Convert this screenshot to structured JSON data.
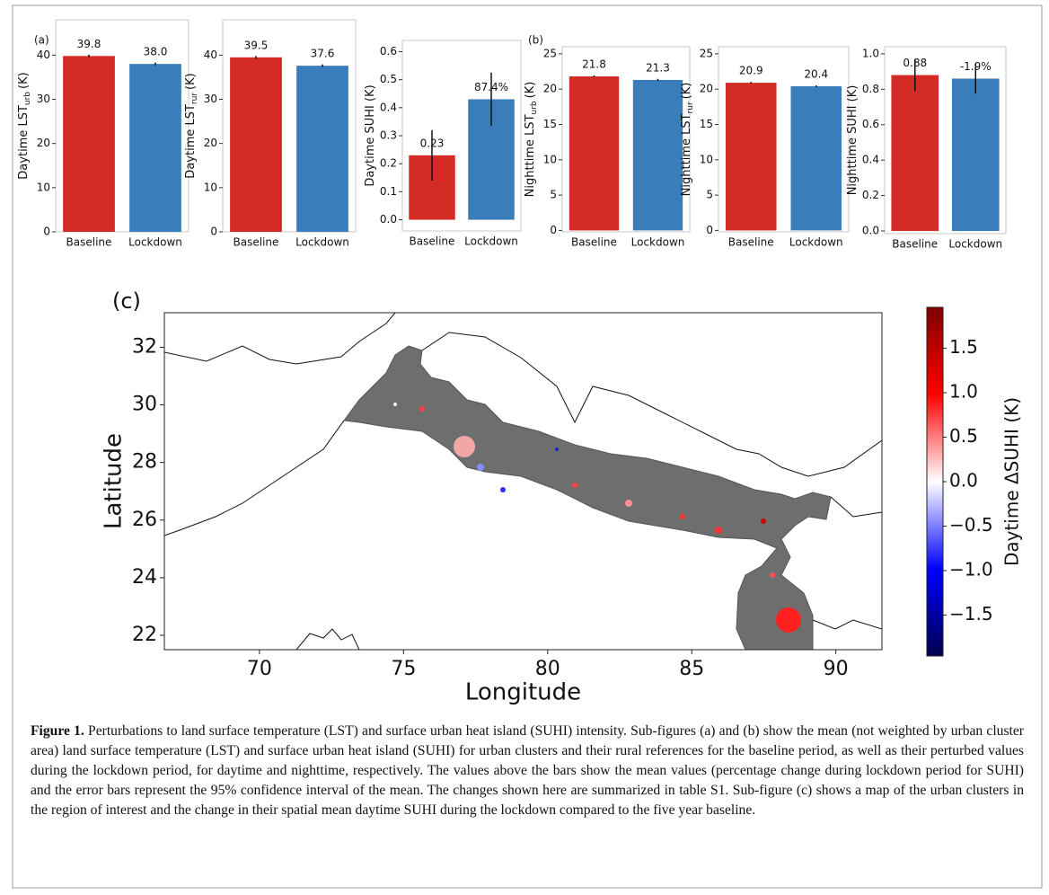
{
  "chart_data": [
    {
      "type": "bar",
      "panel_label": "(a)",
      "ylabel": "Daytime LST",
      "ylabel_sub": "urb",
      "ylabel_unit": "(K)",
      "categories": [
        "Baseline",
        "Lockdown"
      ],
      "values": [
        39.8,
        38.0
      ],
      "value_labels": [
        "39.8",
        "38.0"
      ],
      "errors": [
        0.3,
        0.3
      ],
      "colors": [
        "#d42b27",
        "#3a7dbb"
      ],
      "ylim": [
        0,
        48
      ],
      "yticks": [
        0,
        10,
        20,
        30,
        40
      ]
    },
    {
      "type": "bar",
      "ylabel": "Daytime LST",
      "ylabel_sub": "rur",
      "ylabel_unit": "(K)",
      "categories": [
        "Baseline",
        "Lockdown"
      ],
      "values": [
        39.5,
        37.6
      ],
      "value_labels": [
        "39.5",
        "37.6"
      ],
      "errors": [
        0.3,
        0.3
      ],
      "colors": [
        "#d42b27",
        "#3a7dbb"
      ],
      "ylim": [
        0,
        48
      ],
      "yticks": [
        0,
        10,
        20,
        30,
        40
      ]
    },
    {
      "type": "bar",
      "ylabel": "Daytime SUHI (K)",
      "categories": [
        "Baseline",
        "Lockdown"
      ],
      "values": [
        0.23,
        0.43
      ],
      "value_labels": [
        "0.23",
        null
      ],
      "change_labels": [
        null,
        "87.4%"
      ],
      "errors": [
        0.09,
        0.095
      ],
      "colors": [
        "#d42b27",
        "#3a7dbb"
      ],
      "ylim": [
        -0.04,
        0.64
      ],
      "yticks": [
        {
          "value": 0,
          "label": "0.0"
        },
        0.1,
        0.2,
        0.3,
        0.4,
        0.5,
        0.6
      ]
    },
    {
      "type": "bar",
      "panel_label": "(b)",
      "ylabel": "Nighttime LST",
      "ylabel_sub": "urb",
      "ylabel_unit": "(K)",
      "categories": [
        "Baseline",
        "Lockdown"
      ],
      "values": [
        21.8,
        21.3
      ],
      "value_labels": [
        "21.8",
        "21.3"
      ],
      "errors": [
        0.15,
        0.15
      ],
      "colors": [
        "#d42b27",
        "#3a7dbb"
      ],
      "ylim": [
        -0.2,
        26
      ],
      "yticks": [
        0,
        5,
        10,
        15,
        20,
        25
      ]
    },
    {
      "type": "bar",
      "ylabel": "Nighttime LST",
      "ylabel_sub": "rur",
      "ylabel_unit": "(K)",
      "categories": [
        "Baseline",
        "Lockdown"
      ],
      "values": [
        20.9,
        20.4
      ],
      "value_labels": [
        "20.9",
        "20.4"
      ],
      "errors": [
        0.12,
        0.12
      ],
      "colors": [
        "#d42b27",
        "#3a7dbb"
      ],
      "ylim": [
        -0.2,
        26
      ],
      "yticks": [
        0,
        5,
        10,
        15,
        20,
        25
      ]
    },
    {
      "type": "bar",
      "ylabel": "Nighttime SUHI (K)",
      "categories": [
        "Baseline",
        "Lockdown"
      ],
      "values": [
        0.88,
        0.86
      ],
      "value_labels": [
        "0.88",
        null
      ],
      "change_labels": [
        null,
        "-1.9%"
      ],
      "errors": [
        0.09,
        0.085
      ],
      "colors": [
        "#d42b27",
        "#3a7dbb"
      ],
      "ylim": [
        -0.015,
        1.04
      ],
      "yticks": [
        {
          "value": 0,
          "label": "0.0"
        },
        0.2,
        0.4,
        0.6,
        0.8,
        {
          "value": 1,
          "label": "1.0"
        }
      ]
    },
    {
      "type": "map",
      "panel_label": "(c)",
      "xlabel": "Longitude",
      "ylabel": "Latitude",
      "xlim": [
        66.7,
        91.6
      ],
      "xticks": [
        70,
        75,
        80,
        85,
        90
      ],
      "ylim": [
        21.5,
        33.2
      ],
      "yticks": [
        22,
        24,
        26,
        28,
        30,
        32
      ],
      "colorbar": {
        "label": "Daytime ΔSUHI (K)",
        "lim": [
          -1.96,
          1.96
        ],
        "cmap": [
          "#00004c",
          "#0000ff",
          "#ffffff",
          "#ff0000",
          "#7f0000"
        ],
        "ticks": [
          1.5,
          {
            "value": 1,
            "label": "1.0"
          },
          0.5,
          {
            "value": 0,
            "label": "0.0"
          },
          {
            "value": -0.5,
            "label": "−0.5"
          },
          {
            "value": -1,
            "label": "−1.0"
          },
          {
            "value": -1.5,
            "label": "−1.5"
          }
        ]
      }
    }
  ],
  "caption": {
    "label": "Figure 1.",
    "text": "Perturbations to land surface temperature (LST) and surface urban heat island (SUHI) intensity. Sub-figures (a) and (b) show the mean (not weighted by urban cluster area) land surface temperature (LST) and surface urban heat island (SUHI) for urban clusters and their rural references for the baseline period, as well as their perturbed values during the lockdown period, for daytime and nighttime, respectively. The values above the bars show the mean values (percentage change during lockdown period for SUHI) and the error bars represent the 95% confidence interval of the mean. The changes shown here are summarized in table S1. Sub-figure (c) shows a map of the urban clusters in the region of interest and the change in their spatial mean daytime SUHI during the lockdown compared to the five year baseline."
  }
}
